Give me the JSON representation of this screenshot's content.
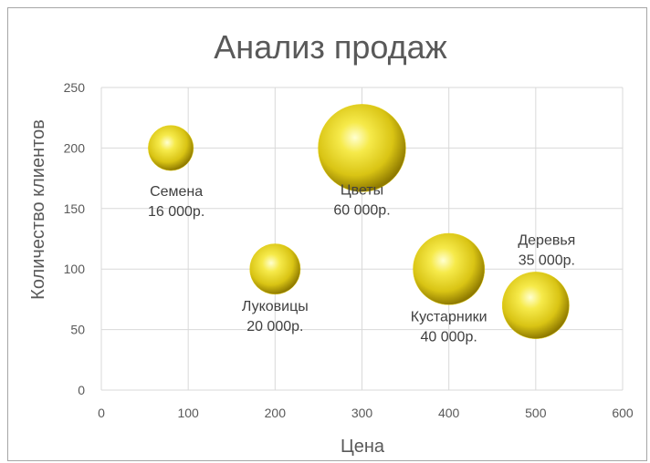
{
  "chart_data": {
    "type": "bubble",
    "title": "Анализ продаж",
    "xlabel": "Цена",
    "ylabel": "Количество клиентов",
    "xlim": [
      0,
      600
    ],
    "ylim": [
      0,
      250
    ],
    "x_ticks": [
      0,
      100,
      200,
      300,
      400,
      500,
      600
    ],
    "y_ticks": [
      0,
      50,
      100,
      150,
      200,
      250
    ],
    "grid": true,
    "bubble_color": "#e8d51f",
    "points": [
      {
        "name": "Семена",
        "x": 80,
        "y": 200,
        "size": 16000,
        "size_label": "16 000р."
      },
      {
        "name": "Луковицы",
        "x": 200,
        "y": 100,
        "size": 20000,
        "size_label": "20 000р."
      },
      {
        "name": "Цветы",
        "x": 300,
        "y": 200,
        "size": 60000,
        "size_label": "60 000р."
      },
      {
        "name": "Кустарники",
        "x": 400,
        "y": 100,
        "size": 40000,
        "size_label": "40 000р."
      },
      {
        "name": "Деревья",
        "x": 500,
        "y": 70,
        "size": 35000,
        "size_label": "35 000р."
      }
    ]
  }
}
